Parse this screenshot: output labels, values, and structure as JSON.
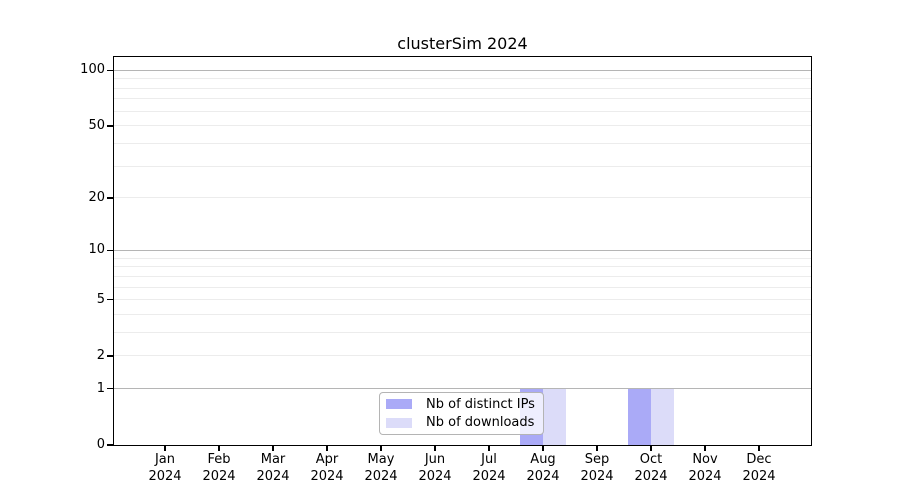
{
  "chart_data": {
    "type": "bar",
    "title": "clusterSim 2024",
    "categories": [
      "Jan 2024",
      "Feb 2024",
      "Mar 2024",
      "Apr 2024",
      "May 2024",
      "Jun 2024",
      "Jul 2024",
      "Aug 2024",
      "Sep 2024",
      "Oct 2024",
      "Nov 2024",
      "Dec 2024"
    ],
    "series": [
      {
        "name": "Nb of distinct IPs",
        "color": "#aaaaf7",
        "values": [
          0,
          0,
          0,
          0,
          0,
          0,
          0,
          1,
          0,
          1,
          0,
          0
        ]
      },
      {
        "name": "Nb of downloads",
        "color": "#dcdcf9",
        "values": [
          0,
          0,
          0,
          0,
          0,
          0,
          0,
          1,
          0,
          1,
          0,
          0
        ]
      }
    ],
    "xlabel": "",
    "ylabel": "",
    "y_scale": "log1p",
    "ylim": [
      0,
      118
    ],
    "y_tick_labels": [
      "100",
      "50",
      "20",
      "10",
      "5",
      "2",
      "1",
      "0"
    ],
    "y_major_gridlines": [
      1,
      10,
      100
    ],
    "y_minor_gridlines": [
      2,
      3,
      4,
      5,
      6,
      7,
      8,
      9,
      20,
      30,
      40,
      50,
      60,
      70,
      80,
      90
    ],
    "grid": "on",
    "legend_position": "lower-center",
    "colors": {
      "background": "#ffffff",
      "axis": "#000000",
      "grid_major": "#b5b5b5",
      "grid_minor": "#ececec",
      "legend_border": "#b4b4b4"
    }
  }
}
